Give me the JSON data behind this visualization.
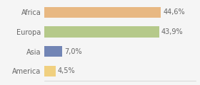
{
  "categories": [
    "Africa",
    "Europa",
    "Asia",
    "America"
  ],
  "values": [
    44.6,
    43.9,
    7.0,
    4.5
  ],
  "labels": [
    "44,6%",
    "43,9%",
    "7,0%",
    "4,5%"
  ],
  "bar_colors": [
    "#e8b882",
    "#b5c98a",
    "#7285b5",
    "#f0d080"
  ],
  "background_color": "#f5f5f5",
  "xlim": [
    0,
    58
  ],
  "label_fontsize": 7.0,
  "category_fontsize": 7.0,
  "bar_height": 0.55
}
